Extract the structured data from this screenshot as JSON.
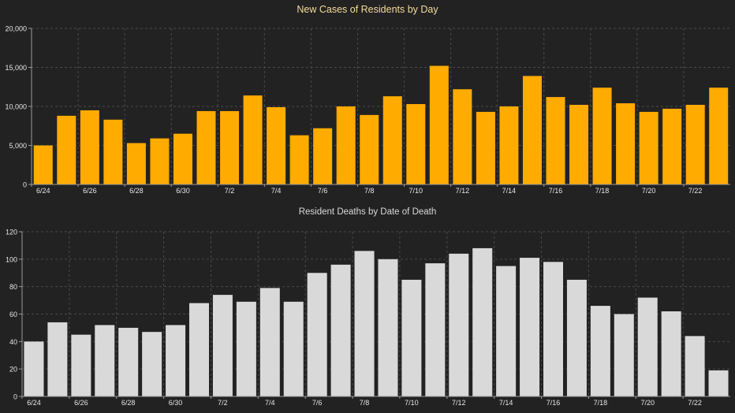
{
  "colors": {
    "background": "#222222",
    "cases_bar": "#ffab00",
    "deaths_bar": "#d9d9d9",
    "grid": "#4a4a4a",
    "axis": "#9a9a9a",
    "text": "#e6e6e6",
    "cases_title": "#f5dc9c",
    "deaths_title": "#d9d9d9"
  },
  "chart_data": [
    {
      "type": "bar",
      "title": "New Cases of Residents by Day",
      "categories": [
        "6/24",
        "6/25",
        "6/26",
        "6/27",
        "6/28",
        "6/29",
        "6/30",
        "7/1",
        "7/2",
        "7/3",
        "7/4",
        "7/5",
        "7/6",
        "7/7",
        "7/8",
        "7/9",
        "7/10",
        "7/11",
        "7/12",
        "7/13",
        "7/14",
        "7/15",
        "7/16",
        "7/17",
        "7/18",
        "7/19",
        "7/20",
        "7/21",
        "7/22",
        "7/23"
      ],
      "values": [
        5000,
        8800,
        9500,
        8300,
        5300,
        5900,
        6500,
        9400,
        9400,
        11400,
        9900,
        6300,
        7200,
        10000,
        8900,
        11300,
        10300,
        15200,
        12200,
        9300,
        10000,
        13900,
        11200,
        10200,
        12400,
        10400,
        9300,
        9700,
        10200,
        12400
      ],
      "tick_labels": [
        "6/24",
        "6/26",
        "6/28",
        "6/30",
        "7/2",
        "7/4",
        "7/6",
        "7/8",
        "7/10",
        "7/12",
        "7/14",
        "7/16",
        "7/18",
        "7/20",
        "7/22"
      ],
      "yticks": [
        "0",
        "5,000",
        "10,000",
        "15,000",
        "20,000"
      ],
      "ylim": [
        0,
        20000
      ],
      "grid": true,
      "xlabel": "",
      "ylabel": ""
    },
    {
      "type": "bar",
      "title": "Resident Deaths by Date of Death",
      "categories": [
        "6/24",
        "6/25",
        "6/26",
        "6/27",
        "6/28",
        "6/29",
        "6/30",
        "7/1",
        "7/2",
        "7/3",
        "7/4",
        "7/5",
        "7/6",
        "7/7",
        "7/8",
        "7/9",
        "7/10",
        "7/11",
        "7/12",
        "7/13",
        "7/14",
        "7/15",
        "7/16",
        "7/17",
        "7/18",
        "7/19",
        "7/20",
        "7/21",
        "7/22",
        "7/23"
      ],
      "values": [
        40,
        54,
        45,
        52,
        50,
        47,
        52,
        68,
        74,
        69,
        79,
        69,
        90,
        96,
        106,
        100,
        85,
        97,
        104,
        108,
        95,
        101,
        98,
        85,
        66,
        60,
        72,
        62,
        44,
        19
      ],
      "tick_labels": [
        "6/24",
        "6/26",
        "6/28",
        "6/30",
        "7/2",
        "7/4",
        "7/6",
        "7/8",
        "7/10",
        "7/12",
        "7/14",
        "7/16",
        "7/18",
        "7/20",
        "7/22"
      ],
      "yticks": [
        "0",
        "20",
        "40",
        "60",
        "80",
        "100",
        "120"
      ],
      "ylim": [
        0,
        120
      ],
      "grid": true,
      "xlabel": "",
      "ylabel": ""
    }
  ]
}
